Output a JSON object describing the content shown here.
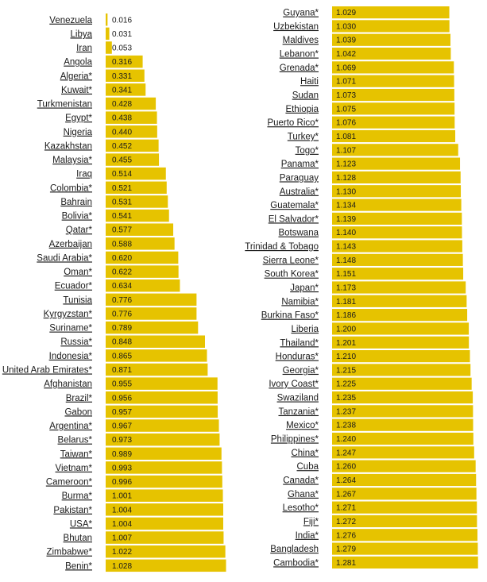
{
  "chart_data": [
    {
      "type": "bar",
      "orientation": "horizontal",
      "categories": [
        "Venezuela",
        "Libya",
        "Iran",
        "Angola",
        "Algeria*",
        "Kuwait*",
        "Turkmenistan",
        "Egypt*",
        "Nigeria",
        "Kazakhstan",
        "Malaysia*",
        "Iraq",
        "Colombia*",
        "Bahrain",
        "Bolivia*",
        "Qatar*",
        "Azerbaijan",
        "Saudi Arabia*",
        "Oman*",
        "Ecuador*",
        "Tunisia",
        "Kyrgyzstan*",
        "Suriname*",
        "Russia*",
        "Indonesia*",
        "United Arab Emirates*",
        "Afghanistan",
        "Brazil*",
        "Gabon",
        "Argentina*",
        "Belarus*",
        "Taiwan*",
        "Vietnam*",
        "Cameroon*",
        "Burma*",
        "Pakistan*",
        "USA*",
        "Bhutan",
        "Zimbabwe*",
        "Benin*"
      ],
      "values": [
        "0.016",
        "0.031",
        "0.053",
        "0.316",
        "0.331",
        "0.341",
        "0.428",
        "0.438",
        "0.440",
        "0.452",
        "0.455",
        "0.514",
        "0.521",
        "0.531",
        "0.541",
        "0.577",
        "0.588",
        "0.620",
        "0.622",
        "0.634",
        "0.776",
        "0.776",
        "0.789",
        "0.848",
        "0.865",
        "0.871",
        "0.955",
        "0.956",
        "0.957",
        "0.967",
        "0.973",
        "0.989",
        "0.993",
        "0.996",
        "1.001",
        "1.004",
        "1.004",
        "1.007",
        "1.022",
        "1.028"
      ],
      "color": "#e6c300"
    },
    {
      "type": "bar",
      "orientation": "horizontal",
      "categories": [
        "Guyana*",
        "Uzbekistan",
        "Maldives",
        "Lebanon*",
        "Grenada*",
        "Haiti",
        "Sudan",
        "Ethiopia",
        "Puerto Rico*",
        "Turkey*",
        "Togo*",
        "Panama*",
        "Paraguay",
        "Australia*",
        "Guatemala*",
        "El Salvador*",
        "Botswana",
        "Trinidad & Tobago",
        "Sierra Leone*",
        "South Korea*",
        "Japan*",
        "Namibia*",
        "Burkina Faso*",
        "Liberia",
        "Thailand*",
        "Honduras*",
        "Georgia*",
        "Ivory Coast*",
        "Swaziland",
        "Tanzania*",
        "Mexico*",
        "Philippines*",
        "China*",
        "Cuba",
        "Canada*",
        "Ghana*",
        "Lesotho*",
        "Fiji*",
        "India*",
        "Bangladesh",
        "Cambodia*"
      ],
      "values": [
        "1.029",
        "1.030",
        "1.039",
        "1.042",
        "1.069",
        "1.071",
        "1.073",
        "1.075",
        "1.076",
        "1.081",
        "1.107",
        "1.123",
        "1.128",
        "1.130",
        "1.134",
        "1.139",
        "1.140",
        "1.143",
        "1.148",
        "1.151",
        "1.173",
        "1.181",
        "1.186",
        "1.200",
        "1.201",
        "1.210",
        "1.215",
        "1.225",
        "1.235",
        "1.237",
        "1.238",
        "1.240",
        "1.247",
        "1.260",
        "1.264",
        "1.267",
        "1.271",
        "1.272",
        "1.276",
        "1.279",
        "1.281"
      ],
      "color": "#e6c300"
    }
  ]
}
